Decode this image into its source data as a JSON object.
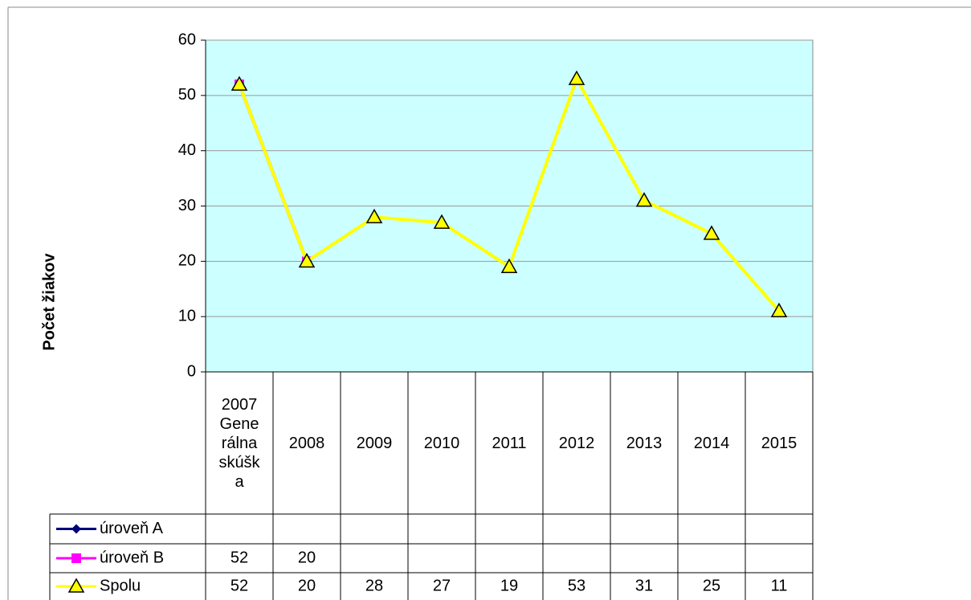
{
  "chart_data": {
    "type": "line",
    "y_label": "Počet žiakov",
    "categories": [
      "2007 Generálna skúška",
      "2008",
      "2009",
      "2010",
      "2011",
      "2012",
      "2013",
      "2014",
      "2015"
    ],
    "series": [
      {
        "name": "úroveň A",
        "color": "#000080",
        "marker": "diamond",
        "values": [
          null,
          null,
          null,
          null,
          null,
          null,
          null,
          null,
          null
        ]
      },
      {
        "name": "úroveň B",
        "color": "#ff00ff",
        "marker": "square",
        "values": [
          52,
          20,
          null,
          null,
          null,
          null,
          null,
          null,
          null
        ]
      },
      {
        "name": "Spolu",
        "color": "#ffff00",
        "marker": "triangle",
        "values": [
          52,
          20,
          28,
          27,
          19,
          53,
          31,
          25,
          11
        ]
      }
    ],
    "ylim": [
      0,
      60
    ],
    "yticks": [
      0,
      10,
      20,
      30,
      40,
      50,
      60
    ],
    "grid": true,
    "plot_background": "#ccffff"
  }
}
